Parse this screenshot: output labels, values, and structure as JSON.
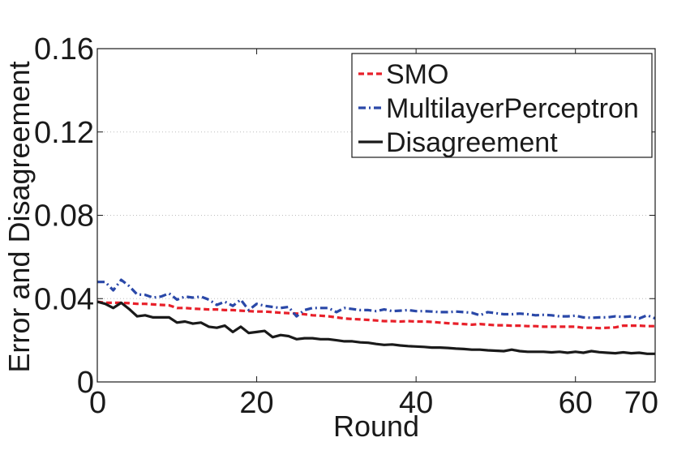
{
  "chart_data": {
    "type": "line",
    "title": "",
    "xlabel": "Round",
    "ylabel": "Error and Disagreement",
    "xlim": [
      0,
      70
    ],
    "ylim": [
      0,
      0.16
    ],
    "xticks": [
      "0",
      "20",
      "40",
      "60",
      "70"
    ],
    "xtick_values": [
      0,
      20,
      40,
      60,
      70
    ],
    "yticks": [
      "0",
      "0.04",
      "0.08",
      "0.12",
      "0.16"
    ],
    "ytick_values": [
      0,
      0.04,
      0.08,
      0.12,
      0.16
    ],
    "grid": "horizontal dotted",
    "legend_position": "top-right",
    "x": [
      0,
      1,
      2,
      3,
      4,
      5,
      6,
      7,
      8,
      9,
      10,
      11,
      12,
      13,
      14,
      15,
      16,
      17,
      18,
      19,
      20,
      21,
      22,
      23,
      24,
      25,
      26,
      27,
      28,
      29,
      30,
      31,
      32,
      33,
      34,
      35,
      36,
      37,
      38,
      39,
      40,
      41,
      42,
      43,
      44,
      45,
      46,
      47,
      48,
      49,
      50,
      51,
      52,
      53,
      54,
      55,
      56,
      57,
      58,
      59,
      60,
      61,
      62,
      63,
      64,
      65,
      66,
      67,
      68,
      69,
      70
    ],
    "series": [
      {
        "name": "SMO",
        "color": "#e8202a",
        "style": "dashed",
        "values": [
          0.0385,
          0.038,
          0.038,
          0.038,
          0.0378,
          0.0375,
          0.0375,
          0.0372,
          0.037,
          0.0368,
          0.0355,
          0.0355,
          0.0352,
          0.035,
          0.0348,
          0.0348,
          0.0345,
          0.0345,
          0.0342,
          0.034,
          0.0338,
          0.0338,
          0.0335,
          0.0332,
          0.033,
          0.0328,
          0.0325,
          0.032,
          0.0318,
          0.0315,
          0.031,
          0.0305,
          0.0302,
          0.03,
          0.0298,
          0.0295,
          0.0292,
          0.0292,
          0.029,
          0.0292,
          0.029,
          0.029,
          0.0288,
          0.0285,
          0.0282,
          0.028,
          0.0278,
          0.0275,
          0.0278,
          0.0275,
          0.0272,
          0.0272,
          0.027,
          0.027,
          0.0268,
          0.0268,
          0.0265,
          0.0265,
          0.0265,
          0.0265,
          0.0265,
          0.026,
          0.026,
          0.0258,
          0.026,
          0.0262,
          0.027,
          0.027,
          0.027,
          0.0268,
          0.0268
        ]
      },
      {
        "name": "MultilayerPerceptron",
        "color": "#2a48a8",
        "style": "dash-dot",
        "values": [
          0.048,
          0.048,
          0.044,
          0.049,
          0.046,
          0.042,
          0.0418,
          0.0405,
          0.041,
          0.0425,
          0.0395,
          0.041,
          0.0405,
          0.041,
          0.0395,
          0.037,
          0.0385,
          0.0365,
          0.0395,
          0.0345,
          0.0375,
          0.0365,
          0.036,
          0.0355,
          0.036,
          0.0315,
          0.0345,
          0.0355,
          0.0355,
          0.0355,
          0.0335,
          0.0355,
          0.035,
          0.0345,
          0.0345,
          0.034,
          0.0348,
          0.034,
          0.0342,
          0.0345,
          0.034,
          0.034,
          0.0338,
          0.0335,
          0.0335,
          0.0338,
          0.0335,
          0.0332,
          0.032,
          0.0335,
          0.033,
          0.0325,
          0.0325,
          0.0328,
          0.0325,
          0.032,
          0.0322,
          0.032,
          0.0315,
          0.0315,
          0.0318,
          0.031,
          0.0308,
          0.031,
          0.031,
          0.0315,
          0.0312,
          0.0315,
          0.0305,
          0.032,
          0.0305
        ]
      },
      {
        "name": "Disagreement",
        "color": "#1a1a1a",
        "style": "solid",
        "values": [
          0.0385,
          0.0375,
          0.0355,
          0.038,
          0.035,
          0.0315,
          0.032,
          0.031,
          0.031,
          0.031,
          0.0285,
          0.029,
          0.028,
          0.0285,
          0.0265,
          0.026,
          0.027,
          0.024,
          0.0265,
          0.0235,
          0.024,
          0.0245,
          0.0215,
          0.0225,
          0.022,
          0.0205,
          0.021,
          0.021,
          0.0205,
          0.0205,
          0.02,
          0.0195,
          0.0195,
          0.019,
          0.0188,
          0.0182,
          0.0178,
          0.018,
          0.0175,
          0.0172,
          0.017,
          0.0168,
          0.0165,
          0.0165,
          0.0163,
          0.016,
          0.0158,
          0.0155,
          0.0155,
          0.0152,
          0.015,
          0.0148,
          0.0155,
          0.0148,
          0.0145,
          0.0145,
          0.0145,
          0.0142,
          0.0145,
          0.014,
          0.0145,
          0.014,
          0.0148,
          0.0143,
          0.014,
          0.0138,
          0.0142,
          0.0138,
          0.014,
          0.0135,
          0.0135
        ]
      }
    ]
  }
}
